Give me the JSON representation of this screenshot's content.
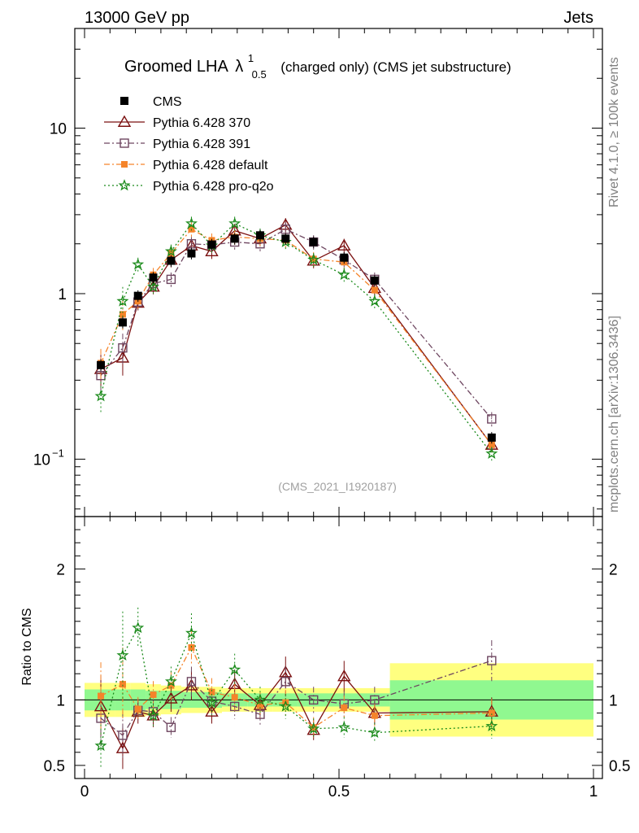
{
  "header": {
    "left": "13000 GeV pp",
    "right": "Jets"
  },
  "side_text": {
    "top": "Rivet 4.1.0, ≥ 100k events",
    "bottom": "mcplots.cern.ch [arXiv:1306.3436]"
  },
  "chart_data": {
    "type": "line",
    "title": "Groomed LHA",
    "title_symbol": "λ",
    "title_sup": "1",
    "title_sub": "0.5",
    "title_suffix": "(charged only) (CMS jet substructure)",
    "watermark": "(CMS_2021_I1920187)",
    "xlim": [
      0,
      1
    ],
    "main_ylim": [
      0.045,
      40
    ],
    "main_yscale": "log",
    "ratio_ylim": [
      0.4,
      2.4
    ],
    "ratio_ylabel": "Ratio to CMS",
    "main_yticks": [
      {
        "v": 10,
        "t": "10"
      },
      {
        "v": 1,
        "t": "1"
      }
    ],
    "main_ytick_exp": {
      "v": 0.1,
      "base": "10",
      "exp": "−1"
    },
    "ratio_yticks": [
      {
        "v": 0.5,
        "t": "0.5"
      },
      {
        "v": 1,
        "t": "1"
      },
      {
        "v": 2,
        "t": "2"
      }
    ],
    "xticks": [
      {
        "v": 0,
        "t": "0"
      },
      {
        "v": 0.5,
        "t": "0.5"
      },
      {
        "v": 1,
        "t": "1"
      }
    ],
    "x": [
      0.032,
      0.075,
      0.105,
      0.135,
      0.17,
      0.21,
      0.25,
      0.295,
      0.345,
      0.395,
      0.45,
      0.51,
      0.57,
      0.8
    ],
    "data": {
      "name": "CMS",
      "values": [
        0.37,
        0.67,
        0.97,
        1.25,
        1.58,
        1.75,
        1.98,
        2.15,
        2.25,
        2.15,
        2.05,
        1.65,
        1.2,
        0.135
      ],
      "ratio_band_edges": [
        0.0,
        0.06,
        0.09,
        0.12,
        0.15,
        0.19,
        0.23,
        0.27,
        0.32,
        0.37,
        0.42,
        0.48,
        0.54,
        0.6,
        1.0
      ],
      "band_green": [
        0.08,
        0.08,
        0.08,
        0.07,
        0.07,
        0.06,
        0.06,
        0.05,
        0.05,
        0.05,
        0.05,
        0.05,
        0.05,
        0.15
      ],
      "band_yellow": [
        0.13,
        0.13,
        0.13,
        0.12,
        0.11,
        0.1,
        0.1,
        0.09,
        0.09,
        0.09,
        0.09,
        0.09,
        0.09,
        0.28
      ]
    },
    "series": [
      {
        "name": "Pythia 6.428 370",
        "color": "#7b1010",
        "dash": "",
        "marker": "triangle",
        "marker_size": 7,
        "values": [
          0.35,
          0.41,
          0.88,
          1.1,
          1.6,
          1.95,
          1.8,
          2.4,
          2.15,
          2.6,
          1.58,
          1.95,
          1.08,
          0.122
        ],
        "ratio": [
          0.95,
          0.63,
          0.91,
          0.88,
          1.01,
          1.11,
          0.91,
          1.12,
          0.96,
          1.21,
          0.77,
          1.18,
          0.9,
          0.91
        ]
      },
      {
        "name": "Pythia 6.428 391",
        "color": "#6e4660",
        "dash": "7,3,2,3",
        "marker": "square-open",
        "marker_size": 5,
        "values": [
          0.32,
          0.47,
          0.89,
          1.15,
          1.22,
          2.0,
          1.97,
          2.05,
          2.0,
          2.45,
          2.05,
          1.6,
          1.22,
          0.175
        ],
        "ratio": [
          0.86,
          0.73,
          0.92,
          0.91,
          0.79,
          1.14,
          0.99,
          0.95,
          0.89,
          1.14,
          1.0,
          0.97,
          1.0,
          1.3
        ]
      },
      {
        "name": "Pythia 6.428 default",
        "color": "#f5842a",
        "dash": "7,3,2,3",
        "marker": "square-filled",
        "marker_size": 4,
        "values": [
          0.38,
          0.75,
          0.9,
          1.3,
          1.75,
          2.45,
          2.1,
          2.2,
          2.15,
          2.1,
          1.62,
          1.55,
          1.05,
          0.122
        ],
        "ratio": [
          1.03,
          1.12,
          0.93,
          1.04,
          1.11,
          1.4,
          1.06,
          1.02,
          0.96,
          0.98,
          0.79,
          0.94,
          0.88,
          0.9
        ]
      },
      {
        "name": "Pythia 6.428 pro-q2o",
        "color": "#1a8a1a",
        "dash": "2,3",
        "marker": "star",
        "marker_size": 6,
        "values": [
          0.24,
          0.9,
          1.5,
          1.1,
          1.8,
          2.65,
          1.95,
          2.65,
          2.25,
          2.05,
          1.6,
          1.3,
          0.9,
          0.108
        ],
        "ratio": [
          0.65,
          1.34,
          1.55,
          0.88,
          1.14,
          1.51,
          0.98,
          1.23,
          1.0,
          0.95,
          0.78,
          0.79,
          0.75,
          0.8
        ]
      }
    ]
  }
}
